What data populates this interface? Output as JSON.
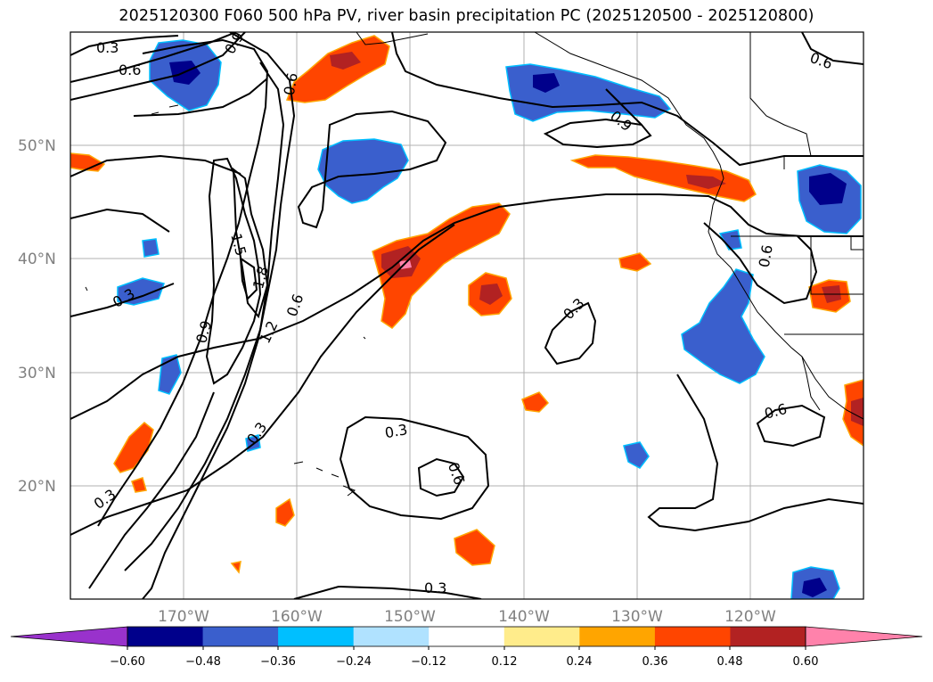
{
  "title": "2025120300 F060 500 hPa PV, river basin precipitation PC (2025120500 - 2025120800)",
  "map": {
    "lat_labels": [
      "50°N",
      "40°N",
      "30°N",
      "20°N"
    ],
    "lon_labels": [
      "170°W",
      "160°W",
      "150°W",
      "140°W",
      "130°W",
      "120°W"
    ],
    "contour_labels": [
      "0.3",
      "0.6",
      "0.9",
      "1.5",
      "1.8",
      "0.6",
      "0.9",
      "1.2",
      "0.3",
      "0.3",
      "0.3",
      "0.6",
      "0.6",
      "0.9",
      "0.3",
      "0.6",
      "0.3",
      "0.6",
      "0.6",
      "0.3"
    ]
  },
  "colorbar": {
    "ticks": [
      "−0.60",
      "−0.48",
      "−0.36",
      "−0.24",
      "−0.12",
      "0.12",
      "0.24",
      "0.36",
      "0.48",
      "0.60"
    ],
    "colors": [
      "#9932cc",
      "#00008b",
      "#3a5fcd",
      "#00bfff",
      "#b0e2ff",
      "#ffffff",
      "#ffec8b",
      "#ffa500",
      "#ff4500",
      "#b22222",
      "#ff82ab"
    ]
  }
}
